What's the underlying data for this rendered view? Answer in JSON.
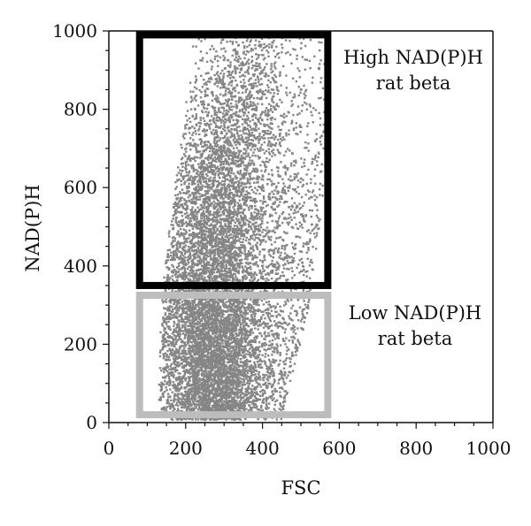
{
  "chart_data": {
    "type": "scatter",
    "title": "",
    "xlabel": "FSC",
    "ylabel": "NAD(P)H",
    "xlim": [
      0,
      1000
    ],
    "ylim": [
      0,
      1000
    ],
    "x_ticks": [
      0,
      200,
      400,
      600,
      800,
      1000
    ],
    "y_ticks": [
      0,
      200,
      400,
      600,
      800,
      1000
    ],
    "x_tick_labels": [
      "0",
      "200",
      "400",
      "600",
      "800",
      "1000"
    ],
    "y_tick_labels": [
      "0",
      "200",
      "400",
      "600",
      "800",
      "1000"
    ],
    "grid": false,
    "legend": "none",
    "point_color": "#858585",
    "gates": [
      {
        "id": "high",
        "label_lines": [
          "High NAD(P)H",
          "rat beta"
        ],
        "x_range": [
          80,
          570
        ],
        "y_range": [
          350,
          990
        ],
        "color": "#000000"
      },
      {
        "id": "low",
        "label_lines": [
          "Low NAD(P)H",
          "rat beta"
        ],
        "x_range": [
          80,
          570
        ],
        "y_range": [
          20,
          325
        ],
        "color": "#bdbdbd"
      }
    ],
    "distribution": {
      "fsc_center_at_nadph": [
        [
          20,
          280
        ],
        [
          300,
          265
        ],
        [
          600,
          280
        ],
        [
          900,
          350
        ]
      ],
      "fsc_min_at_nadph": [
        [
          20,
          130
        ],
        [
          300,
          140
        ],
        [
          600,
          175
        ],
        [
          900,
          220
        ]
      ],
      "fsc_max_at_nadph": [
        [
          20,
          450
        ],
        [
          300,
          520
        ],
        [
          600,
          560
        ],
        [
          900,
          575
        ]
      ]
    }
  }
}
